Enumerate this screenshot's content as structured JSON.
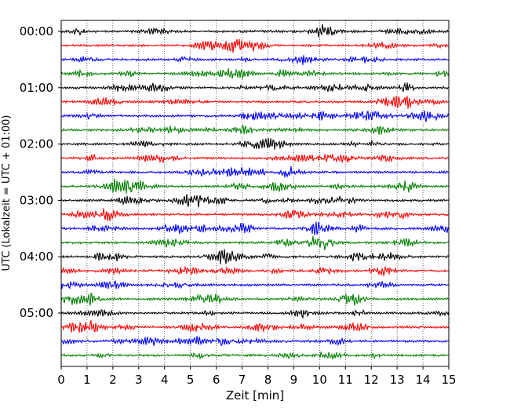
{
  "chart_data": {
    "type": "line",
    "title": "",
    "xlabel": "Zeit  [min]",
    "ylabel": "UTC (Lokalzeit = UTC + 01:00)",
    "x_ticks": [
      0,
      1,
      2,
      3,
      4,
      5,
      6,
      7,
      8,
      9,
      10,
      11,
      12,
      13,
      14,
      15
    ],
    "xlim": [
      0,
      15
    ],
    "y_tick_labels": [
      "00:00",
      "01:00",
      "02:00",
      "03:00",
      "04:00",
      "05:00"
    ],
    "y_tick_rows": [
      0,
      4,
      8,
      12,
      16,
      20
    ],
    "row_count": 24,
    "row_interval_min": 15,
    "color_cycle": [
      "#000000",
      "#ff0000",
      "#0000ff",
      "#008000"
    ],
    "grid": "vertical dotted",
    "legend": "none"
  }
}
